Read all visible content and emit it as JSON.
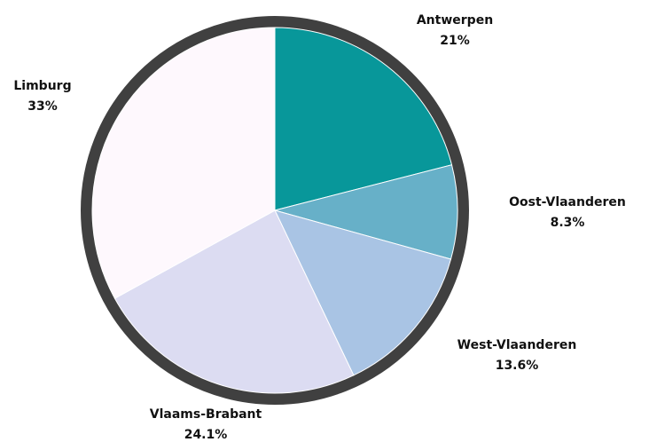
{
  "chart_data": {
    "type": "pie",
    "categories": [
      "Antwerpen",
      "Oost-Vlaanderen",
      "West-Vlaanderen",
      "Vlaams-Brabant",
      "Limburg"
    ],
    "values": [
      21,
      8.3,
      13.6,
      24.1,
      33
    ],
    "value_labels": [
      "21%",
      "8.3%",
      "13.6%",
      "24.1%",
      "33%"
    ],
    "colors": [
      "#08979a",
      "#67b0c8",
      "#a9c4e4",
      "#dcdcf2",
      "#fef8fd"
    ],
    "border_color": "#404040"
  }
}
